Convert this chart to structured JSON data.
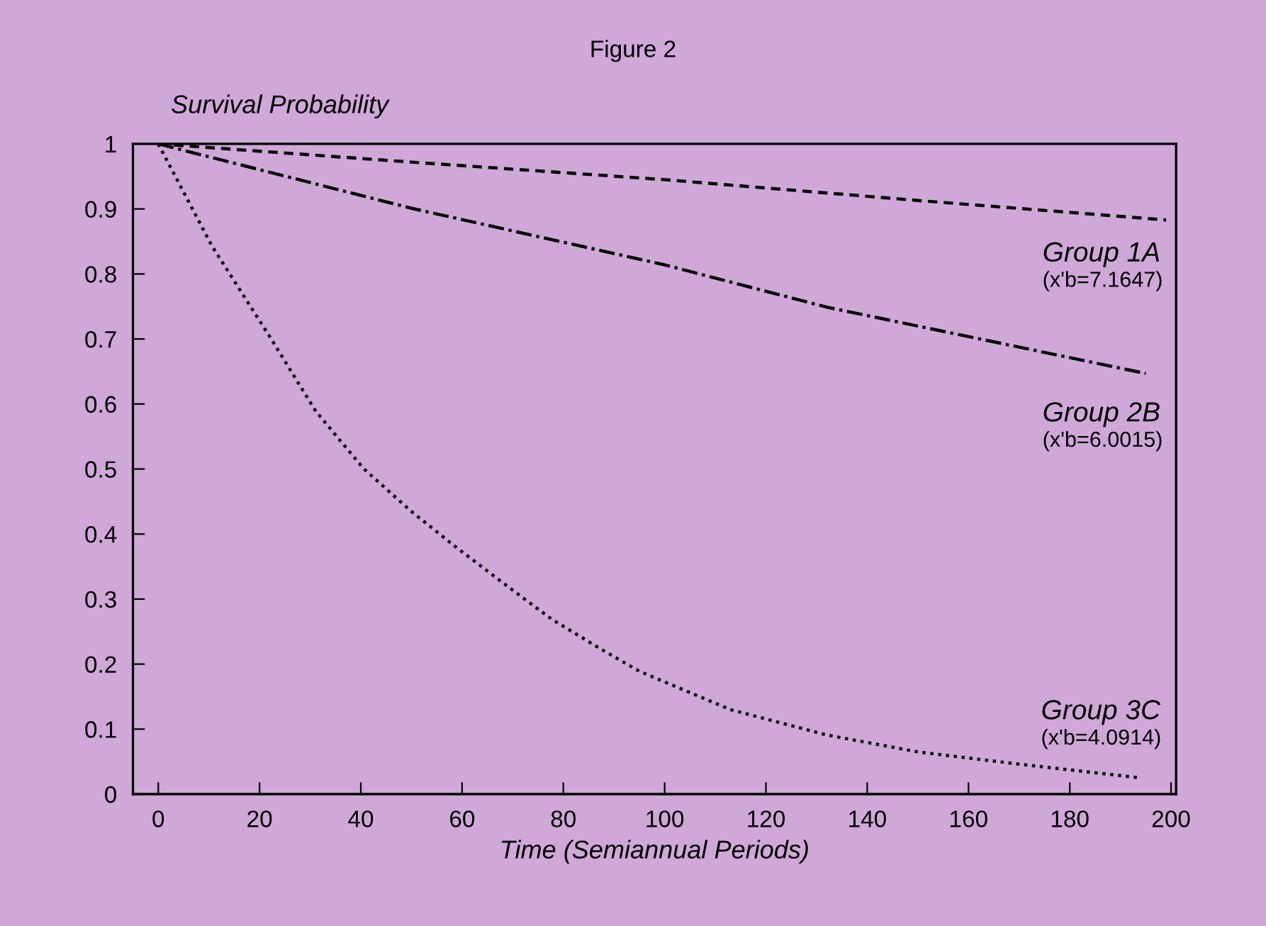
{
  "chart_data": {
    "type": "line",
    "title": "Figure 2",
    "ylabel": "Survival Probability",
    "xlabel": "Time (Semiannual Periods)",
    "xlim": [
      -5,
      201
    ],
    "ylim": [
      0,
      1
    ],
    "xticks": [
      0,
      20,
      40,
      60,
      80,
      100,
      120,
      140,
      160,
      180,
      200
    ],
    "yticks": [
      0,
      0.1,
      0.2,
      0.3,
      0.4,
      0.5,
      0.6,
      0.7,
      0.8,
      0.9,
      1
    ],
    "grid": false,
    "legend": false,
    "series": [
      {
        "color": "#000000",
        "line_style": "dashed",
        "x": [
          0,
          50,
          100,
          150,
          199
        ],
        "values": [
          1,
          0.972,
          0.945,
          0.913,
          0.883
        ]
      },
      {
        "color": "#000000",
        "line_style": "dashdot",
        "x": [
          0,
          50,
          100,
          132,
          195
        ],
        "values": [
          1,
          0.901,
          0.814,
          0.749,
          0.647
        ]
      },
      {
        "color": "#000000",
        "line_style": "dotted",
        "x": [
          0,
          10.6,
          21.9,
          31.1,
          40.5,
          49.8,
          59.1,
          68.4,
          77.7,
          87,
          95,
          113,
          132,
          150,
          169,
          194
        ],
        "values": [
          1,
          0.843,
          0.705,
          0.589,
          0.501,
          0.436,
          0.378,
          0.323,
          0.269,
          0.225,
          0.189,
          0.13,
          0.091,
          0.065,
          0.047,
          0.025
        ]
      }
    ],
    "annotations": [
      "Group 1A\n(x'b=7.1647)",
      "Group 2B\n(x'b=6.0015)",
      "Group 3C\n(x'b=4.0914)"
    ]
  }
}
